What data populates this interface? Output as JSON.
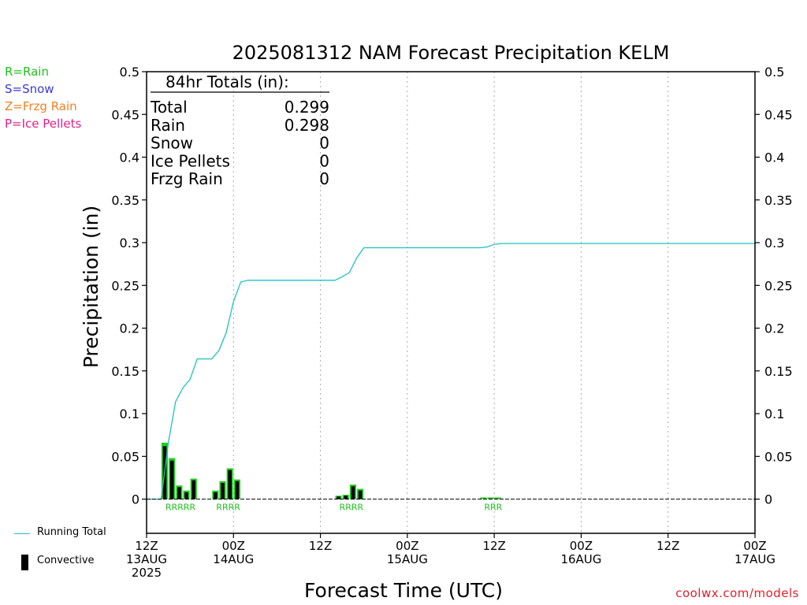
{
  "credit": "coolwx.com/models",
  "legend_types": [
    {
      "label": "R=Rain",
      "color": "#20c020"
    },
    {
      "label": "S=Snow",
      "color": "#3a3adf"
    },
    {
      "label": "Z=Frzg Rain",
      "color": "#f08020"
    },
    {
      "label": "P=Ice Pellets",
      "color": "#e0208a"
    }
  ],
  "legend_bottom": {
    "running_total": "Running Total",
    "convective": "Convective"
  },
  "totals_box": {
    "title": "84hr Totals (in):",
    "rows": [
      {
        "label": "Total",
        "value": "0.299"
      },
      {
        "label": "Rain",
        "value": "0.298"
      },
      {
        "label": "Snow",
        "value": "0"
      },
      {
        "label": "Ice Pellets",
        "value": "0"
      },
      {
        "label": "Frzg Rain",
        "value": "0"
      }
    ]
  },
  "colors": {
    "running_total": "#20c0c0",
    "precip_bar": "#20d020",
    "convective": "#000000",
    "rain_marker": "#20c020",
    "grid": "#aaaaaa"
  },
  "chart_data": {
    "type": "bar",
    "title": "2025081312 NAM Forecast Precipitation KELM",
    "xlabel": "Forecast Time (UTC)",
    "ylabel": "Precipitation (in)",
    "ylim": [
      -0.04,
      0.5
    ],
    "xlim_hours": [
      0,
      84
    ],
    "yticks": [
      0,
      0.05,
      0.1,
      0.15,
      0.2,
      0.25,
      0.3,
      0.35,
      0.4,
      0.45,
      0.5
    ],
    "ytick_labels": [
      "0",
      "0.05",
      "0.1",
      "0.15",
      "0.2",
      "0.25",
      "0.3",
      "0.35",
      "0.4",
      "0.45",
      "0.5"
    ],
    "xticks": [
      {
        "hour": 0,
        "lines": [
          "12Z",
          "13AUG",
          "2025"
        ]
      },
      {
        "hour": 12,
        "lines": [
          "00Z",
          "14AUG"
        ]
      },
      {
        "hour": 24,
        "lines": [
          "12Z"
        ]
      },
      {
        "hour": 36,
        "lines": [
          "00Z",
          "15AUG"
        ]
      },
      {
        "hour": 48,
        "lines": [
          "12Z"
        ]
      },
      {
        "hour": 60,
        "lines": [
          "00Z",
          "16AUG"
        ]
      },
      {
        "hour": 72,
        "lines": [
          "12Z"
        ]
      },
      {
        "hour": 84,
        "lines": [
          "00Z",
          "17AUG"
        ]
      }
    ],
    "grid": "vertical dotted",
    "bars": [
      {
        "hour": 3,
        "total": 0.066,
        "convective": 0.062
      },
      {
        "hour": 4,
        "total": 0.048,
        "convective": 0.045
      },
      {
        "hour": 5,
        "total": 0.016,
        "convective": 0.014
      },
      {
        "hour": 6,
        "total": 0.01,
        "convective": 0.008
      },
      {
        "hour": 7,
        "total": 0.024,
        "convective": 0.022
      },
      {
        "hour": 10,
        "total": 0.01,
        "convective": 0.008
      },
      {
        "hour": 11,
        "total": 0.021,
        "convective": 0.019
      },
      {
        "hour": 12,
        "total": 0.036,
        "convective": 0.034
      },
      {
        "hour": 13,
        "total": 0.023,
        "convective": 0.021
      },
      {
        "hour": 27,
        "total": 0.004,
        "convective": 0.003
      },
      {
        "hour": 28,
        "total": 0.005,
        "convective": 0.004
      },
      {
        "hour": 29,
        "total": 0.017,
        "convective": 0.015
      },
      {
        "hour": 30,
        "total": 0.012,
        "convective": 0.01
      },
      {
        "hour": 47,
        "total": 0.002,
        "convective": 0.0
      },
      {
        "hour": 48,
        "total": 0.002,
        "convective": 0.0
      },
      {
        "hour": 49,
        "total": 0.002,
        "convective": 0.0
      }
    ],
    "precip_type_markers": [
      {
        "hour_start": 2.5,
        "text": "RRRRR"
      },
      {
        "hour_start": 9.5,
        "text": "RRRR"
      },
      {
        "hour_start": 26.5,
        "text": "RRRR"
      },
      {
        "hour_start": 46.5,
        "text": "RRR"
      }
    ],
    "running_total": {
      "name": "Running Total",
      "x": [
        0,
        1,
        2,
        3,
        4,
        5,
        6,
        7,
        8,
        9,
        10,
        11,
        12,
        13,
        14,
        15,
        16,
        17,
        18,
        19,
        20,
        21,
        22,
        23,
        24,
        25,
        26,
        27,
        28,
        29,
        30,
        31,
        32,
        33,
        34,
        35,
        36,
        37,
        38,
        39,
        40,
        41,
        42,
        43,
        44,
        45,
        46,
        47,
        48,
        49,
        84
      ],
      "y": [
        0,
        0,
        0,
        0.066,
        0.114,
        0.13,
        0.14,
        0.164,
        0.164,
        0.164,
        0.174,
        0.195,
        0.231,
        0.254,
        0.256,
        0.256,
        0.256,
        0.256,
        0.256,
        0.256,
        0.256,
        0.256,
        0.256,
        0.256,
        0.256,
        0.256,
        0.256,
        0.26,
        0.265,
        0.282,
        0.294,
        0.294,
        0.294,
        0.294,
        0.294,
        0.294,
        0.294,
        0.294,
        0.294,
        0.294,
        0.294,
        0.294,
        0.294,
        0.294,
        0.294,
        0.294,
        0.294,
        0.295,
        0.298,
        0.299,
        0.299
      ]
    }
  }
}
